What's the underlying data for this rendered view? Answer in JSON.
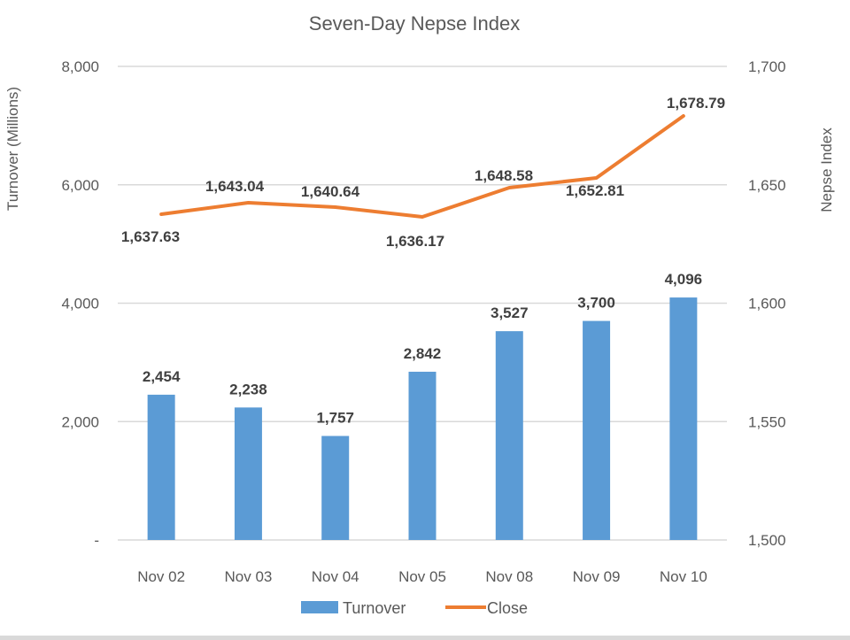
{
  "chart_data": {
    "type": "bar+line",
    "title": "Seven-Day Nepse Index",
    "categories": [
      "Nov 02",
      "Nov 03",
      "Nov 04",
      "Nov 05",
      "Nov 08",
      "Nov 09",
      "Nov 10"
    ],
    "series": [
      {
        "name": "Turnover",
        "type": "bar",
        "axis": "primary",
        "color": "#5b9bd5",
        "values": [
          2454,
          2238,
          1757,
          2842,
          3527,
          3700,
          4096
        ],
        "labels": [
          "2,454",
          "2,238",
          "1,757",
          "2,842",
          "3,527",
          "3,700",
          "4,096"
        ]
      },
      {
        "name": "Close",
        "type": "line",
        "axis": "secondary",
        "color": "#ed7d31",
        "values": [
          1637.63,
          1643.04,
          1640.64,
          1636.17,
          1648.58,
          1652.81,
          1678.79
        ],
        "labels": [
          "1,637.63",
          "1,643.04",
          "1,640.64",
          "1,636.17",
          "1,648.58",
          "1,652.81",
          "1,678.79"
        ]
      }
    ],
    "ylabel": "Turnover (Millions)",
    "y2label": "Nepse Index",
    "ylim": [
      0,
      8000
    ],
    "y2lim": [
      1500,
      1700
    ],
    "yticks": [
      "-",
      "2,000",
      "4,000",
      "6,000",
      "8,000"
    ],
    "y2ticks": [
      "1,500",
      "1,550",
      "1,600",
      "1,650",
      "1,700"
    ],
    "grid": true,
    "legend_position": "bottom"
  },
  "legend": {
    "turnover": "Turnover",
    "close": "Close"
  }
}
